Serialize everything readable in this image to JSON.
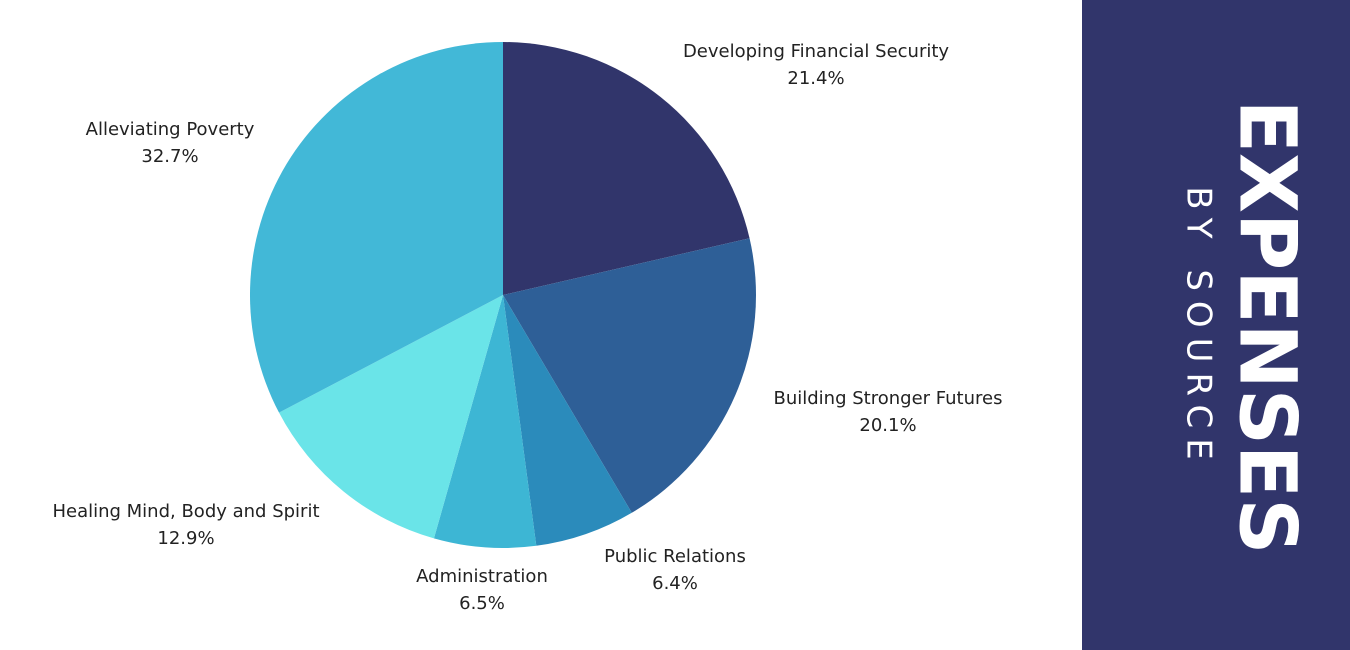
{
  "chart_data": {
    "type": "pie",
    "title": "EXPENSES",
    "subtitle": "BY SOURCE",
    "categories": [
      "Developing Financial Security",
      "Building Stronger Futures",
      "Public Relations",
      "Administration",
      "Healing Mind, Body and Spirit",
      "Alleviating Poverty"
    ],
    "values": [
      21.4,
      20.1,
      6.4,
      6.5,
      12.9,
      32.7
    ],
    "value_labels": [
      "21.4%",
      "20.1%",
      "6.4%",
      "6.5%",
      "12.9%",
      "32.7%"
    ],
    "colors": [
      "#31356b",
      "#2e5f97",
      "#2b8bbb",
      "#3db6d4",
      "#6ae4e8",
      "#42b8d7"
    ]
  }
}
